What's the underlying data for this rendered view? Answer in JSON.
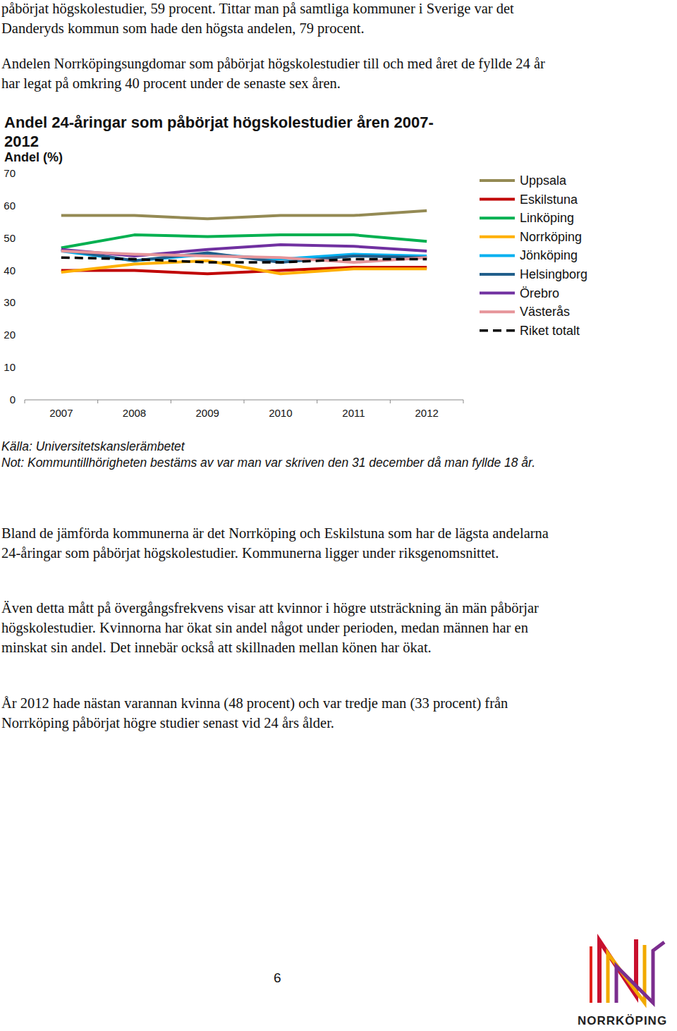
{
  "paragraphs_top": [
    "påbörjat högskolestudier, 59 procent. Tittar man på samtliga kommuner i Sverige var det Danderyds kommun som hade den högsta andelen, 79 procent.",
    "Andelen Norrköpingsungdomar som påbörjat högskolestudier till och med året de fyllde 24 år har legat på omkring 40 procent under de senaste sex åren."
  ],
  "chart_data": {
    "type": "line",
    "title": "Andel 24-åringar som påbörjat högskolestudier åren 2007-2012",
    "y_label": "Andel (%)",
    "categories": [
      "2007",
      "2008",
      "2009",
      "2010",
      "2011",
      "2012"
    ],
    "series": [
      {
        "name": "Uppsala",
        "color": "#948a54",
        "values": [
          57,
          57,
          56,
          57,
          57,
          58.5
        ]
      },
      {
        "name": "Eskilstuna",
        "color": "#c00000",
        "values": [
          40,
          40,
          39,
          40,
          41,
          41
        ]
      },
      {
        "name": "Linköping",
        "color": "#00b050",
        "values": [
          47,
          51,
          50.5,
          51,
          51,
          49
        ]
      },
      {
        "name": "Norrköping",
        "color": "#ffb000",
        "values": [
          39.5,
          42,
          43,
          39,
          40.5,
          40.5
        ]
      },
      {
        "name": "Jönköping",
        "color": "#00b0f0",
        "values": [
          46,
          43,
          45,
          43.5,
          45,
          44.5
        ]
      },
      {
        "name": "Helsingborg",
        "color": "#215f8b",
        "values": [
          46.5,
          43,
          45.5,
          42.5,
          44.5,
          44
        ]
      },
      {
        "name": "Örebro",
        "color": "#7030a0",
        "values": [
          46.5,
          44.5,
          46.5,
          48,
          47.5,
          46
        ]
      },
      {
        "name": "Västerås",
        "color": "#e6959a",
        "values": [
          46,
          45,
          44.5,
          44,
          42.5,
          44
        ]
      },
      {
        "name": "Riket totalt",
        "color": "#000000",
        "line_style": "dashed",
        "values": [
          44,
          43.5,
          42.5,
          42.5,
          43.5,
          43.5
        ]
      }
    ],
    "ylim": [
      0,
      70
    ],
    "yticks": [
      0,
      10,
      20,
      30,
      40,
      50,
      60,
      70
    ],
    "grid": false,
    "legend": "right"
  },
  "source": "Källa: Universitetskanslerämbetet",
  "note": "Not: Kommuntillhörigheten bestäms av var man var skriven den 31 december då man fyllde 18 år.",
  "paragraphs_bottom": [
    "Bland de jämförda kommunerna är det Norrköping och Eskilstuna som har de lägsta andelarna 24-åringar som påbörjat högskolestudier. Kommunerna ligger under riksgenomsnittet.",
    "Även detta mått på övergångsfrekvens visar att kvinnor i högre utsträckning än män påbörjar högskolestudier. Kvinnorna har ökat sin andel något under perioden, medan männen har en minskat sin andel. Det innebär också att skillnaden mellan könen har ökat.",
    "År 2012 hade nästan varannan kvinna (48 procent) och var tredje man (33 procent) från Norrköping påbörjat högre studier senast vid 24 års ålder."
  ],
  "page_number": "6",
  "logo_text": "NORRKÖPING"
}
